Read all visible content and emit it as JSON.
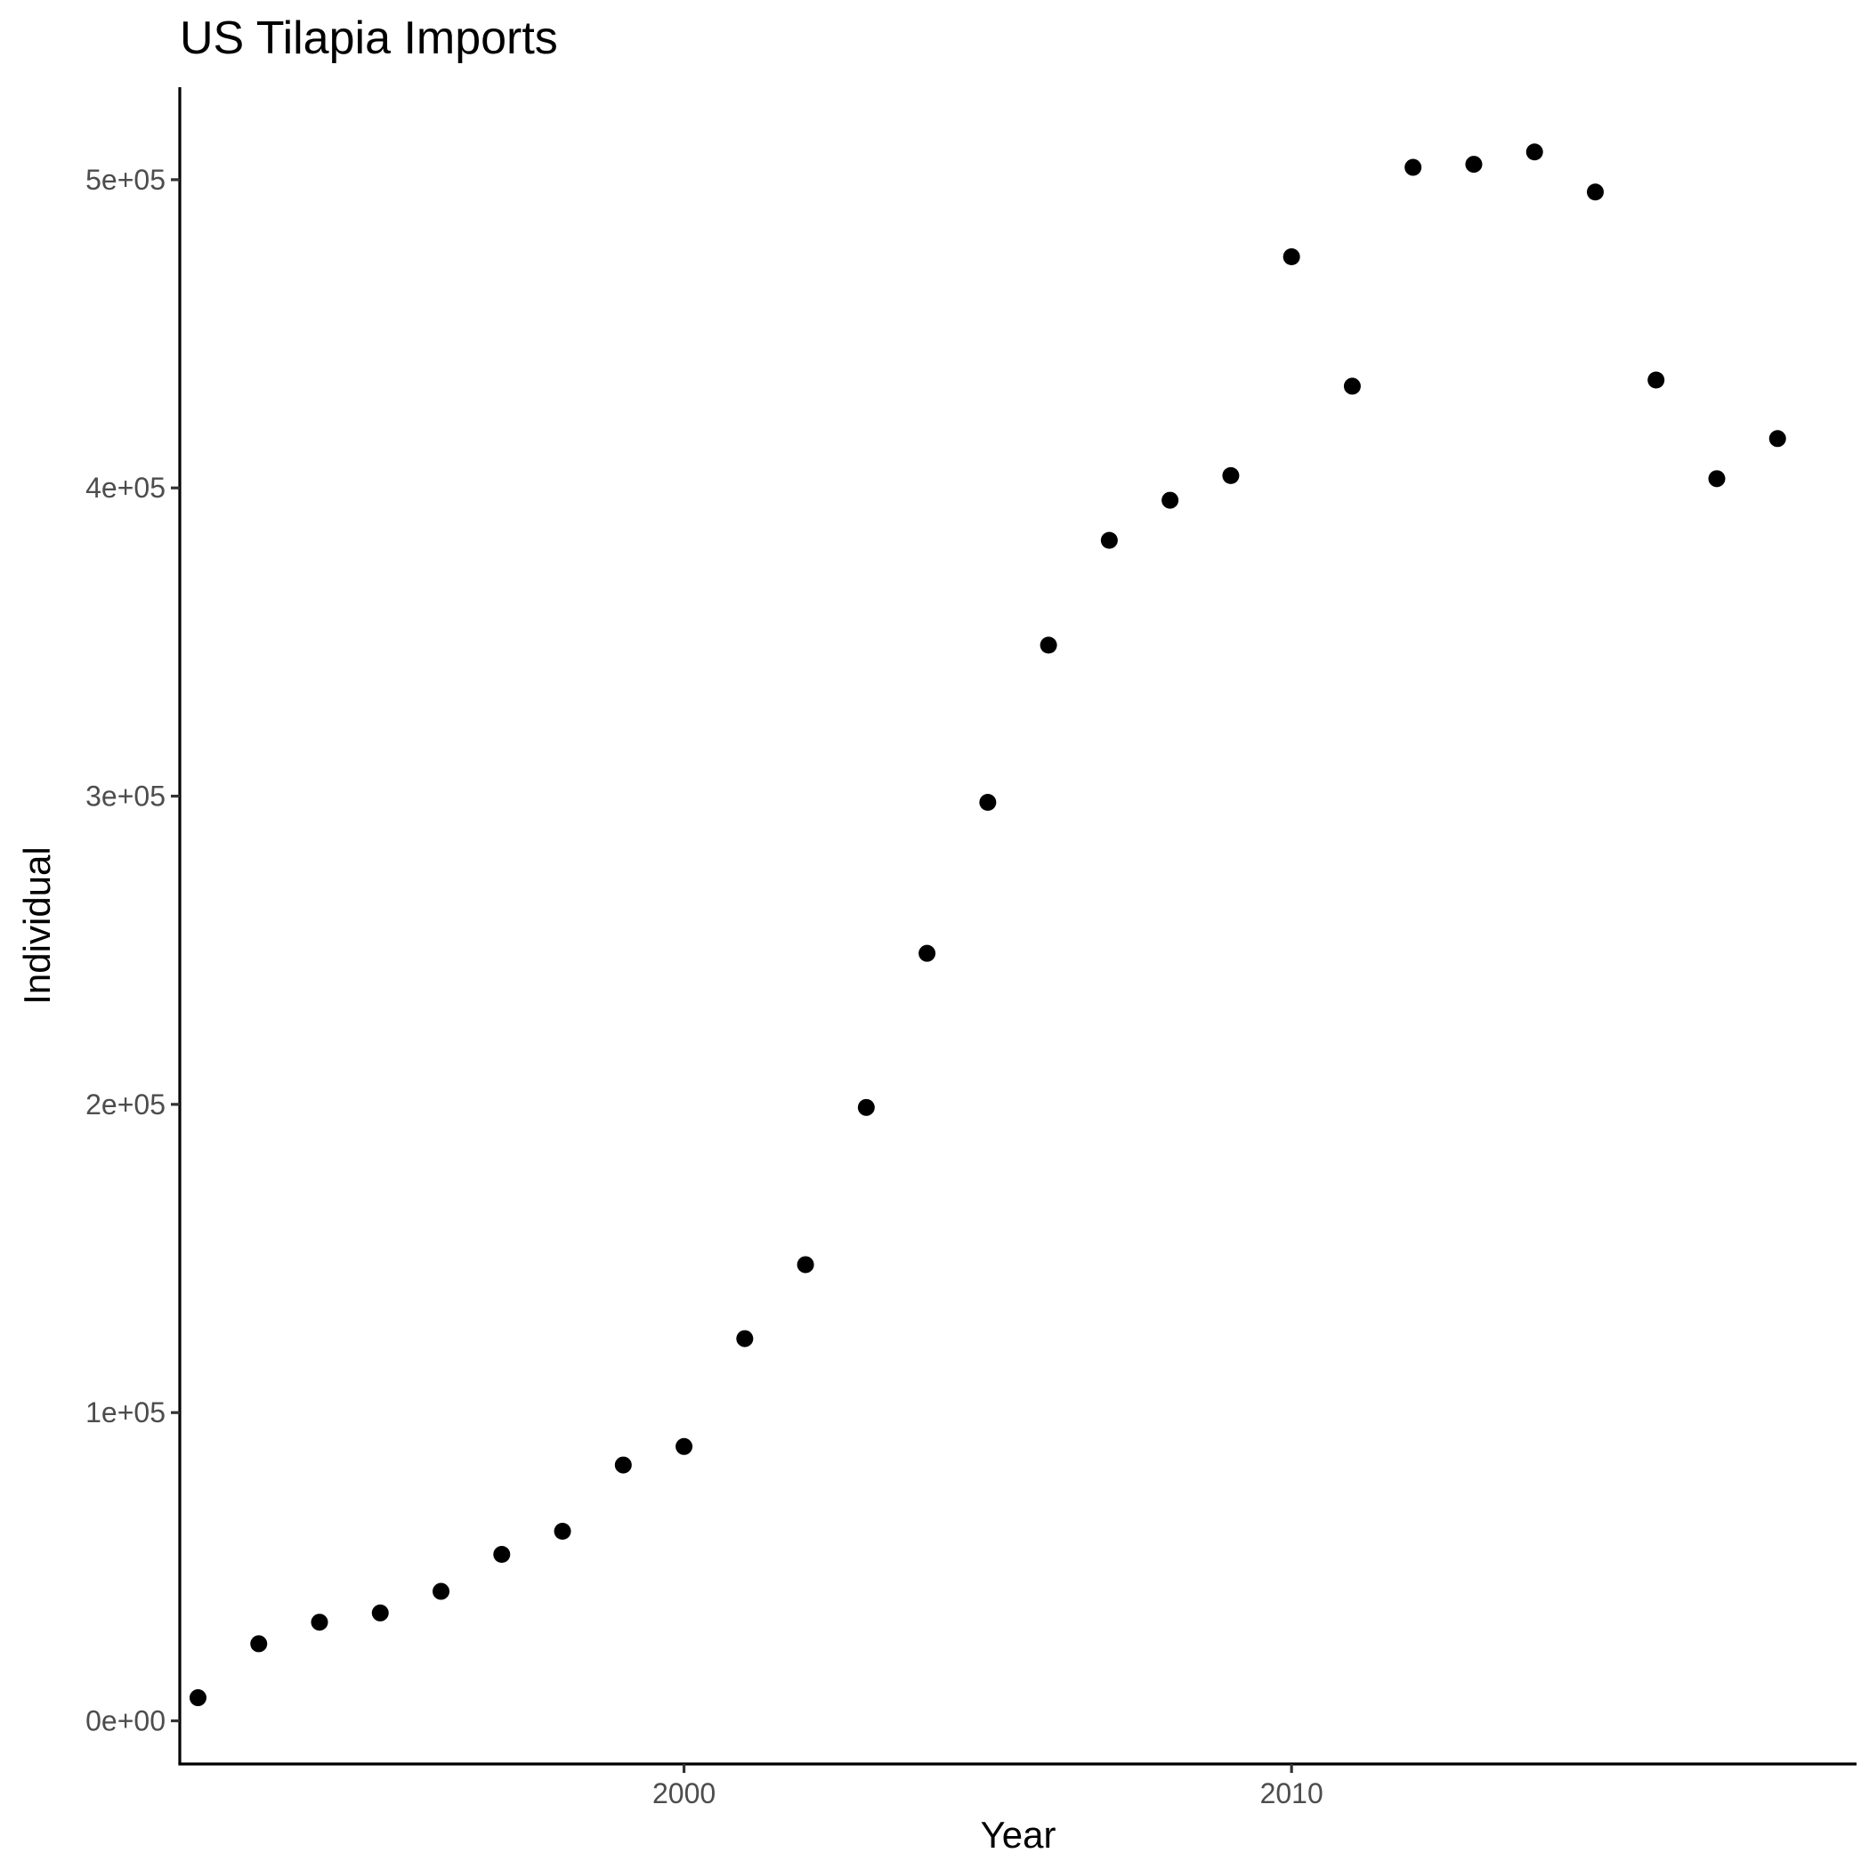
{
  "chart_data": {
    "type": "scatter",
    "title": "US Tilapia Imports",
    "xlabel": "Year",
    "ylabel": "Individual",
    "xlim": [
      1991.7,
      2019.3
    ],
    "ylim": [
      -14000,
      530000
    ],
    "x_ticks": [
      2000,
      2010
    ],
    "x_tick_labels": [
      "2000",
      "2010"
    ],
    "y_ticks": [
      0,
      100000,
      200000,
      300000,
      400000,
      500000
    ],
    "y_tick_labels": [
      "0e+00",
      "1e+05",
      "2e+05",
      "3e+05",
      "4e+05",
      "5e+05"
    ],
    "grid": false,
    "legend": "none",
    "point_color": "#000000",
    "series": [
      {
        "x": [
          1992,
          1993,
          1994,
          1995,
          1996,
          1997,
          1998,
          1999,
          2000,
          2001,
          2002,
          2003,
          2004,
          2005,
          2006,
          2007,
          2008,
          2009,
          2010,
          2011,
          2012,
          2013,
          2014,
          2015,
          2016,
          2017,
          2018
        ],
        "y": [
          7500,
          25000,
          32000,
          35000,
          42000,
          54000,
          61500,
          83000,
          89000,
          124000,
          148000,
          199000,
          249000,
          298000,
          349000,
          383000,
          396000,
          404000,
          475000,
          433000,
          504000,
          505000,
          509000,
          496000,
          435000,
          403000,
          416000
        ]
      }
    ]
  }
}
